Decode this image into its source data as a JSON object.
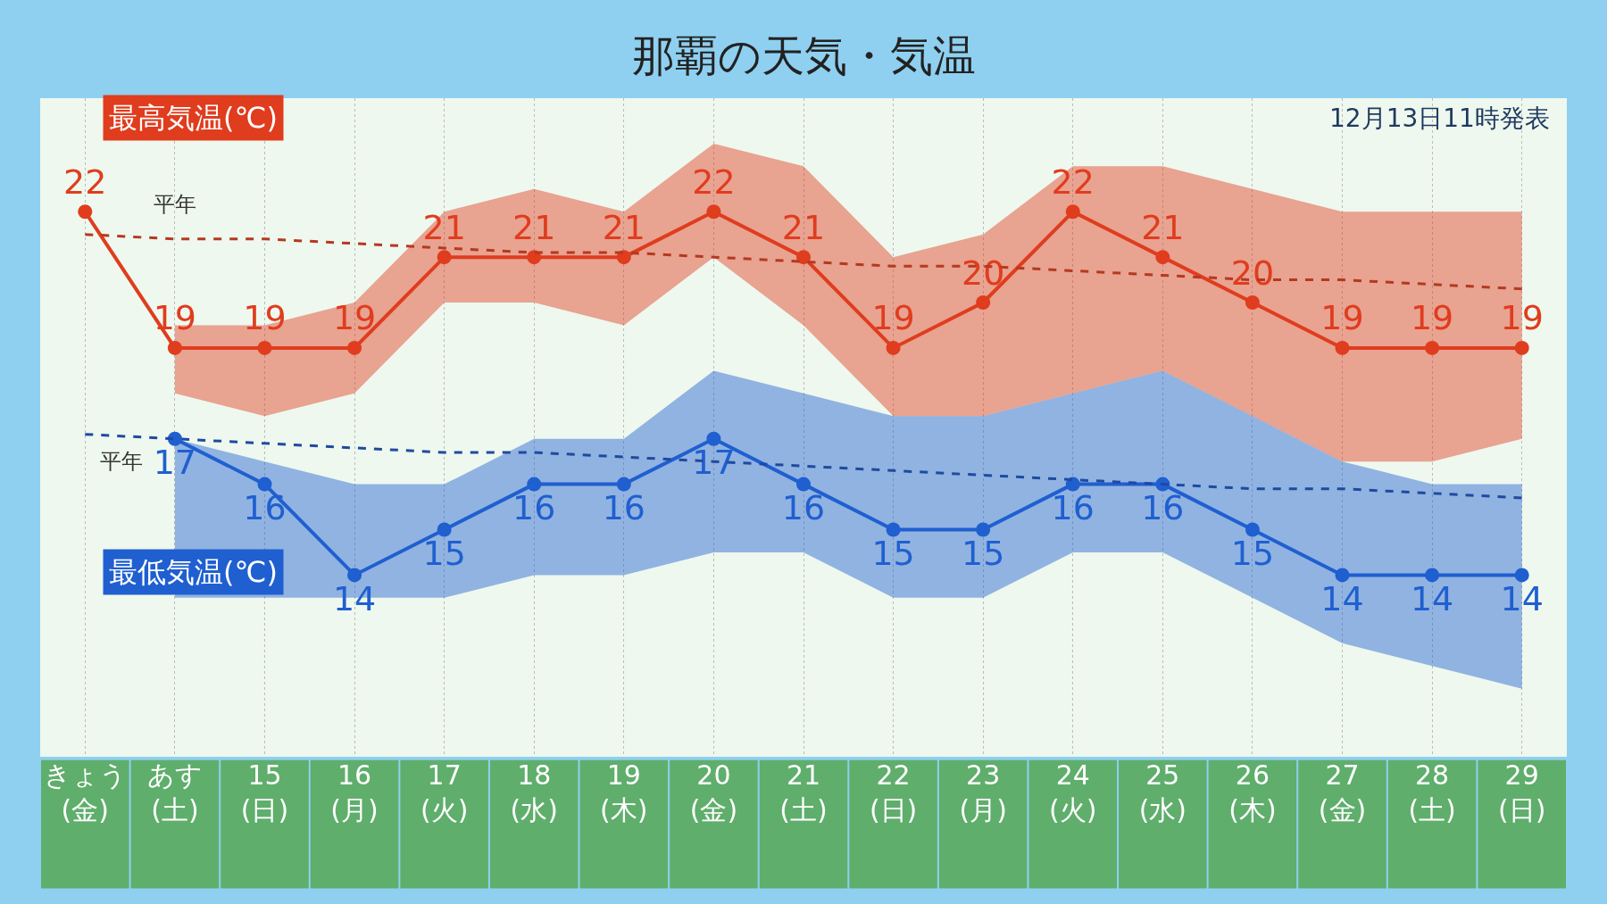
{
  "chart_data": {
    "type": "line",
    "title": "那覇の天気・気温",
    "annotations": [
      "12月13日11時発表"
    ],
    "categories": [
      "きょう\n(金)",
      "あす\n(土)",
      "15\n(日)",
      "16\n(月)",
      "17\n(火)",
      "18\n(水)",
      "19\n(木)",
      "20\n(金)",
      "21\n(土)",
      "22\n(日)",
      "23\n(月)",
      "24\n(火)",
      "25\n(水)",
      "26\n(木)",
      "27\n(金)",
      "28\n(土)",
      "29\n(日)"
    ],
    "ylim": [
      10,
      24.5
    ],
    "tick_labels": "x",
    "grid": "x",
    "legend": false,
    "marker": "circle",
    "series": [
      {
        "name": "最高気温(℃)",
        "color": "#e03c1e",
        "values": [
          22,
          19,
          19,
          19,
          21,
          21,
          21,
          22,
          21,
          19,
          20,
          22,
          21,
          20,
          19,
          19,
          19
        ],
        "value_labels": [
          "22",
          "19",
          "19",
          "19",
          "21",
          "21",
          "21",
          "22",
          "21",
          "19",
          "20",
          "22",
          "21",
          "20",
          "19",
          "19",
          "19"
        ],
        "lower": [
          null,
          18,
          17.5,
          18,
          20,
          20,
          19.5,
          21,
          19.5,
          17.5,
          17.5,
          18,
          18.5,
          17.5,
          16.5,
          16.5,
          17
        ],
        "upper": [
          null,
          19.5,
          19.5,
          20,
          22,
          22.5,
          22,
          23.5,
          23,
          21,
          21.5,
          23,
          23,
          22.5,
          22,
          22,
          22
        ]
      },
      {
        "name": "最低気温(℃)",
        "color": "#1f5fd0",
        "values": [
          null,
          17,
          16,
          14,
          15,
          16,
          16,
          17,
          16,
          15,
          15,
          16,
          16,
          15,
          14,
          14,
          14
        ],
        "value_labels": [
          null,
          "17",
          "16",
          "14",
          "15",
          "16",
          "16",
          "17",
          "16",
          "15",
          "15",
          "16",
          "16",
          "15",
          "14",
          "14",
          "14"
        ],
        "lower": [
          null,
          13.5,
          13.5,
          13.5,
          13.5,
          14,
          14,
          14.5,
          14.5,
          13.5,
          13.5,
          14.5,
          14.5,
          13.5,
          12.5,
          12,
          11.5
        ],
        "upper": [
          null,
          17,
          16.5,
          16,
          16,
          17,
          17,
          18.5,
          18,
          17.5,
          17.5,
          18,
          18.5,
          17.5,
          16.5,
          16,
          16
        ]
      },
      {
        "name": "平年",
        "color": "#b5391f",
        "values": [
          21.5,
          21.4,
          21.4,
          21.3,
          21.2,
          21.1,
          21.1,
          21.0,
          20.9,
          20.8,
          20.8,
          20.7,
          20.6,
          20.5,
          20.5,
          20.4,
          20.3
        ],
        "line_style": "dashed",
        "marker": "none"
      },
      {
        "name": "平年",
        "color": "#1f4aa0",
        "values": [
          17.1,
          17.0,
          16.9,
          16.8,
          16.7,
          16.7,
          16.6,
          16.5,
          16.4,
          16.3,
          16.2,
          16.1,
          16.0,
          15.9,
          15.9,
          15.8,
          15.7
        ],
        "line_style": "dashed",
        "marker": "none"
      }
    ]
  }
}
